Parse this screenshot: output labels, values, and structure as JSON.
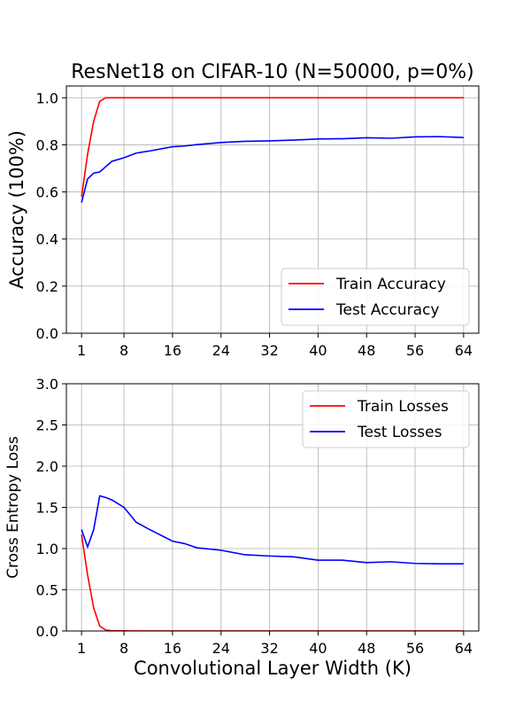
{
  "figure_title": "ResNet18 on CIFAR-10 (N=50000, p=0%)",
  "colors": {
    "train": "#ff0000",
    "test": "#0000ff",
    "grid": "#b0b0b0",
    "axis": "#000000"
  },
  "chart_data": [
    {
      "type": "line",
      "ylabel": "Accuracy (100%)",
      "xlabel": "",
      "xlim": [
        -1.5,
        66.5
      ],
      "ylim": [
        0,
        1.05
      ],
      "xticks": [
        1,
        8,
        16,
        24,
        32,
        40,
        48,
        56,
        64
      ],
      "xtick_labels": [
        "1",
        "8",
        "16",
        "24",
        "32",
        "40",
        "48",
        "56",
        "64"
      ],
      "yticks": [
        0,
        0.2,
        0.4,
        0.6,
        0.8,
        1.0
      ],
      "ytick_labels": [
        "0.0",
        "0.2",
        "0.4",
        "0.6",
        "0.8",
        "1.0"
      ],
      "grid": true,
      "legend": "lower-right",
      "series": [
        {
          "name": "Train Accuracy",
          "color": "#ff0000",
          "x": [
            1,
            2,
            3,
            4,
            5,
            6,
            8,
            10,
            12,
            16,
            20,
            24,
            28,
            32,
            36,
            40,
            44,
            48,
            52,
            56,
            60,
            64
          ],
          "y": [
            0.58,
            0.76,
            0.9,
            0.985,
            1.0,
            1.0,
            1.0,
            1.0,
            1.0,
            1.0,
            1.0,
            1.0,
            1.0,
            1.0,
            1.0,
            1.0,
            1.0,
            1.0,
            1.0,
            1.0,
            1.0,
            1.0
          ]
        },
        {
          "name": "Test Accuracy",
          "color": "#0000ff",
          "x": [
            1,
            2,
            3,
            4,
            6,
            8,
            10,
            12,
            16,
            18,
            20,
            24,
            28,
            32,
            36,
            40,
            44,
            48,
            52,
            56,
            60,
            64
          ],
          "y": [
            0.555,
            0.655,
            0.68,
            0.685,
            0.73,
            0.745,
            0.765,
            0.773,
            0.792,
            0.795,
            0.801,
            0.81,
            0.815,
            0.817,
            0.82,
            0.825,
            0.826,
            0.83,
            0.828,
            0.834,
            0.835,
            0.831
          ]
        }
      ]
    },
    {
      "type": "line",
      "ylabel": "Cross Entropy Loss",
      "xlabel": "Convolutional Layer Width (K)",
      "xlim": [
        -1.5,
        66.5
      ],
      "ylim": [
        0,
        3.0
      ],
      "xticks": [
        1,
        8,
        16,
        24,
        32,
        40,
        48,
        56,
        64
      ],
      "xtick_labels": [
        "1",
        "8",
        "16",
        "24",
        "32",
        "40",
        "48",
        "56",
        "64"
      ],
      "yticks": [
        0,
        0.5,
        1.0,
        1.5,
        2.0,
        2.5,
        3.0
      ],
      "ytick_labels": [
        "0.0",
        "0.5",
        "1.0",
        "1.5",
        "2.0",
        "2.5",
        "3.0"
      ],
      "grid": true,
      "legend": "top-right",
      "series": [
        {
          "name": "Train Losses",
          "color": "#ff0000",
          "x": [
            1,
            2,
            3,
            4,
            5,
            6,
            8,
            10,
            12,
            16,
            20,
            24,
            28,
            32,
            36,
            40,
            44,
            48,
            52,
            56,
            60,
            64
          ],
          "y": [
            1.17,
            0.68,
            0.28,
            0.06,
            0.012,
            0.004,
            0.002,
            0.001,
            0.001,
            0.001,
            0.001,
            0.001,
            0.001,
            0.001,
            0.001,
            0.001,
            0.001,
            0.001,
            0.001,
            0.001,
            0.001,
            0.001
          ]
        },
        {
          "name": "Test Losses",
          "color": "#0000ff",
          "x": [
            1,
            2,
            3,
            4,
            5,
            6,
            8,
            10,
            12,
            16,
            18,
            20,
            24,
            28,
            32,
            36,
            40,
            44,
            48,
            52,
            56,
            60,
            64
          ],
          "y": [
            1.23,
            1.02,
            1.23,
            1.64,
            1.62,
            1.59,
            1.5,
            1.32,
            1.24,
            1.09,
            1.06,
            1.01,
            0.98,
            0.925,
            0.91,
            0.9,
            0.86,
            0.86,
            0.83,
            0.84,
            0.82,
            0.815,
            0.815
          ]
        }
      ]
    }
  ]
}
